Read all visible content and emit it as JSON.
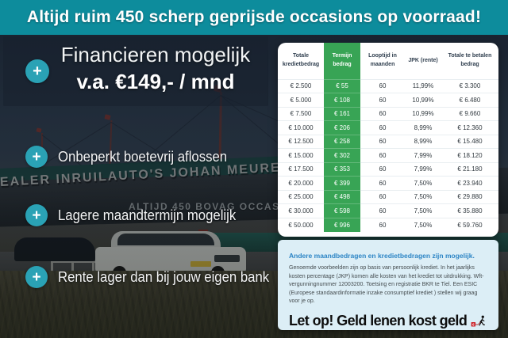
{
  "banner": {
    "text": "Altijd ruim 450 scherp geprijsde occasions op voorraad!"
  },
  "usp": {
    "plus": "+",
    "headline": {
      "line1": "Financieren mogelijk",
      "line2": "v.a. €149,- / mnd"
    },
    "items": [
      {
        "label": "Onbeperkt boetevrij aflossen"
      },
      {
        "label": "Lagere maandtermijn mogelijk"
      },
      {
        "label": "Rente lager dan bij jouw eigen bank"
      }
    ]
  },
  "photo": {
    "signage_top": "EALER INRUILAUTO'S JOHAN MEURE",
    "signage_bottom": "ALTIJD 450 BOVAG OCCASIONS"
  },
  "finance_table": {
    "columns": [
      "Totale kredietbedrag",
      "Termijn bedrag",
      "Looptijd in maanden",
      "JPK (rente)",
      "Totale te betalen bedrag"
    ],
    "highlight_column_index": 1,
    "rows": [
      [
        "€ 2.500",
        "€ 55",
        "60",
        "11,99%",
        "€ 3.300"
      ],
      [
        "€ 5.000",
        "€ 108",
        "60",
        "10,99%",
        "€ 6.480"
      ],
      [
        "€ 7.500",
        "€ 161",
        "60",
        "10,99%",
        "€ 9.660"
      ],
      [
        "€ 10.000",
        "€ 206",
        "60",
        "8,99%",
        "€ 12.360"
      ],
      [
        "€ 12.500",
        "€ 258",
        "60",
        "8,99%",
        "€ 15.480"
      ],
      [
        "€ 15.000",
        "€ 302",
        "60",
        "7,99%",
        "€ 18.120"
      ],
      [
        "€ 17.500",
        "€ 353",
        "60",
        "7,99%",
        "€ 21.180"
      ],
      [
        "€ 20.000",
        "€ 399",
        "60",
        "7,50%",
        "€ 23.940"
      ],
      [
        "€ 25.000",
        "€ 498",
        "60",
        "7,50%",
        "€ 29.880"
      ],
      [
        "€ 30.000",
        "€ 598",
        "60",
        "7,50%",
        "€ 35.880"
      ],
      [
        "€ 50.000",
        "€ 996",
        "60",
        "7,50%",
        "€ 59.760"
      ]
    ]
  },
  "disclaimer": {
    "heading": "Andere maandbedragen en kredietbedragen zijn mogelijk.",
    "body": "Genoemde voorbeelden zijn op basis van persoonlijk krediet. In het jaarlijks kosten percentage (JKP) komen alle kosten van het krediet tot uitdrukking. Wft-vergunningnummer 12003200. Toetsing en registratie BKR te Tiel. Een ESIC (Europese standaardinformatie inzake consumptief krediet ) stellen wij graag voor je op.",
    "warning": "Let op! Geld lenen kost geld"
  },
  "colors": {
    "banner_teal": "#0d8c9c",
    "plus_circle_teal": "#2aa2b5",
    "highlight_green": "#38a455",
    "panel_blue": "#dceef6",
    "heading_blue": "#2d85c5"
  }
}
